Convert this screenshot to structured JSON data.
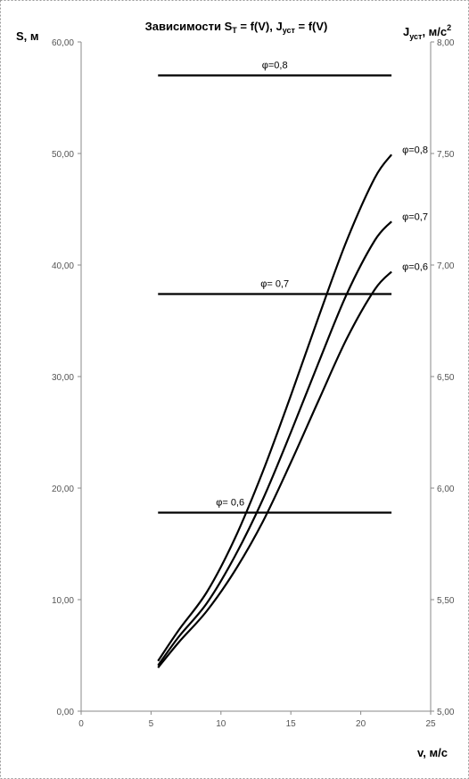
{
  "chart_data": {
    "type": "line",
    "title": {
      "prefix": "Зависимости S",
      "sub1": "Т",
      "mid": " = f(V), J",
      "sub2": "уст",
      "suffix": " = f(V)"
    },
    "xlabel": "v, м/с",
    "ylabel": "S, м",
    "y2label": {
      "base": "J",
      "sub": "уст",
      "text": ", м/с",
      "sup": "2"
    },
    "xlim": [
      0,
      25
    ],
    "ylim": [
      0,
      60
    ],
    "y2lim": [
      5.0,
      8.0
    ],
    "x_ticks": [
      "0",
      "5",
      "10",
      "15",
      "20",
      "25"
    ],
    "y_ticks": [
      "0,00",
      "10,00",
      "20,00",
      "30,00",
      "40,00",
      "50,00",
      "60,00"
    ],
    "y2_ticks": [
      "5,00",
      "5,50",
      "6,00",
      "6,50",
      "7,00",
      "7,50",
      "8,00"
    ],
    "series": [
      {
        "name": "φ=0,8",
        "axis": "left",
        "x": [
          5.5,
          7,
          9,
          11,
          13,
          15,
          17,
          19,
          21,
          22.2
        ],
        "y": [
          4.5,
          7.3,
          10.7,
          15.5,
          21.5,
          28.3,
          35.4,
          42.2,
          47.8,
          49.9
        ]
      },
      {
        "name": "φ=0,7",
        "axis": "left",
        "x": [
          5.5,
          7,
          9,
          11,
          13,
          15,
          17,
          19,
          21,
          22.2
        ],
        "y": [
          4.1,
          6.7,
          9.7,
          13.9,
          19.0,
          25.0,
          31.3,
          37.4,
          42.2,
          43.9
        ]
      },
      {
        "name": "φ=0,6",
        "axis": "left",
        "x": [
          5.5,
          7,
          9,
          11,
          13,
          15,
          17,
          19,
          21,
          22.2
        ],
        "y": [
          3.9,
          6.2,
          9.0,
          12.6,
          17.0,
          22.3,
          27.9,
          33.4,
          37.8,
          39.4
        ]
      },
      {
        "name": "φ=0,8",
        "axis": "right",
        "x": [
          5.5,
          22.2
        ],
        "y": [
          7.85,
          7.85
        ]
      },
      {
        "name": "φ= 0,7",
        "axis": "right",
        "x": [
          5.5,
          22.2
        ],
        "y": [
          6.87,
          6.87
        ]
      },
      {
        "name": "φ= 0,6",
        "axis": "right",
        "x": [
          5.5,
          22.2
        ],
        "y": [
          5.89,
          5.89
        ]
      }
    ],
    "legend": "none",
    "grid": false
  }
}
